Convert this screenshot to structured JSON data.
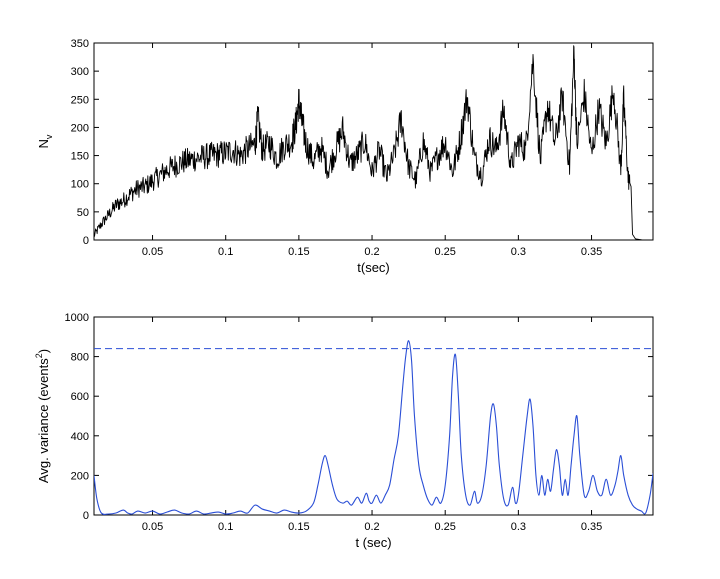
{
  "chart_data": [
    {
      "type": "line",
      "xlabel": "t(sec)",
      "ylabel": "N",
      "ylabel_subscript": "v",
      "xlim": [
        0.01,
        0.392
      ],
      "ylim": [
        0,
        350
      ],
      "xticks": [
        "0.05",
        "0.1",
        "0.15",
        "0.2",
        "0.25",
        "0.3",
        "0.35"
      ],
      "yticks": [
        "0",
        "50",
        "100",
        "150",
        "200",
        "250",
        "300",
        "350"
      ],
      "grid": false,
      "series": [
        {
          "color": "#000000",
          "x": [
            0.01,
            0.015,
            0.02,
            0.025,
            0.03,
            0.035,
            0.04,
            0.045,
            0.05,
            0.055,
            0.06,
            0.065,
            0.07,
            0.075,
            0.08,
            0.085,
            0.09,
            0.095,
            0.1,
            0.105,
            0.11,
            0.115,
            0.12,
            0.122,
            0.125,
            0.13,
            0.135,
            0.14,
            0.145,
            0.148,
            0.15,
            0.152,
            0.155,
            0.16,
            0.165,
            0.17,
            0.175,
            0.18,
            0.185,
            0.19,
            0.195,
            0.2,
            0.205,
            0.21,
            0.215,
            0.22,
            0.225,
            0.23,
            0.235,
            0.24,
            0.245,
            0.25,
            0.255,
            0.26,
            0.265,
            0.27,
            0.275,
            0.28,
            0.285,
            0.29,
            0.295,
            0.3,
            0.305,
            0.31,
            0.315,
            0.32,
            0.325,
            0.33,
            0.335,
            0.338,
            0.34,
            0.345,
            0.35,
            0.355,
            0.36,
            0.365,
            0.37,
            0.372,
            0.375,
            0.377,
            0.378,
            0.38,
            0.385,
            0.39
          ],
          "y": [
            8,
            28,
            45,
            62,
            70,
            82,
            92,
            95,
            105,
            115,
            125,
            132,
            138,
            142,
            145,
            148,
            150,
            152,
            155,
            160,
            150,
            162,
            170,
            215,
            160,
            172,
            145,
            168,
            175,
            205,
            248,
            210,
            170,
            140,
            165,
            125,
            160,
            195,
            135,
            150,
            175,
            120,
            160,
            110,
            150,
            215,
            130,
            105,
            175,
            120,
            150,
            175,
            120,
            175,
            255,
            145,
            115,
            180,
            160,
            230,
            130,
            175,
            160,
            320,
            140,
            240,
            170,
            255,
            130,
            335,
            170,
            260,
            150,
            235,
            170,
            270,
            125,
            250,
            110,
            95,
            10,
            2,
            0,
            0
          ]
        }
      ]
    },
    {
      "type": "line",
      "xlabel": "t (sec)",
      "ylabel": "Avg. variance (events",
      "ylabel_superscript": "2",
      "ylabel_suffix": ")",
      "xlim": [
        0.01,
        0.392
      ],
      "ylim": [
        0,
        1000
      ],
      "xticks": [
        "0.05",
        "0.1",
        "0.15",
        "0.2",
        "0.25",
        "0.3",
        "0.35"
      ],
      "yticks": [
        "0",
        "200",
        "400",
        "600",
        "800",
        "1000"
      ],
      "grid": false,
      "threshold": 840,
      "series": [
        {
          "color": "#2b4fd6",
          "x": [
            0.01,
            0.012,
            0.015,
            0.02,
            0.025,
            0.03,
            0.033,
            0.036,
            0.04,
            0.045,
            0.05,
            0.055,
            0.06,
            0.065,
            0.07,
            0.075,
            0.08,
            0.085,
            0.09,
            0.095,
            0.1,
            0.105,
            0.11,
            0.115,
            0.12,
            0.125,
            0.13,
            0.135,
            0.14,
            0.145,
            0.15,
            0.155,
            0.16,
            0.163,
            0.166,
            0.168,
            0.17,
            0.173,
            0.176,
            0.18,
            0.183,
            0.186,
            0.19,
            0.193,
            0.196,
            0.198,
            0.2,
            0.203,
            0.206,
            0.209,
            0.212,
            0.215,
            0.218,
            0.221,
            0.223,
            0.225,
            0.227,
            0.229,
            0.232,
            0.235,
            0.238,
            0.241,
            0.244,
            0.247,
            0.25,
            0.253,
            0.255,
            0.257,
            0.259,
            0.261,
            0.264,
            0.267,
            0.27,
            0.272,
            0.275,
            0.278,
            0.281,
            0.283,
            0.285,
            0.287,
            0.29,
            0.293,
            0.296,
            0.298,
            0.3,
            0.303,
            0.306,
            0.308,
            0.31,
            0.312,
            0.314,
            0.316,
            0.318,
            0.32,
            0.322,
            0.324,
            0.326,
            0.328,
            0.33,
            0.332,
            0.334,
            0.336,
            0.338,
            0.34,
            0.342,
            0.345,
            0.348,
            0.351,
            0.354,
            0.357,
            0.36,
            0.363,
            0.366,
            0.368,
            0.37,
            0.372,
            0.375,
            0.378,
            0.381,
            0.384,
            0.387,
            0.39,
            0.392
          ],
          "y": [
            200,
            80,
            10,
            5,
            10,
            25,
            10,
            5,
            20,
            10,
            20,
            5,
            15,
            25,
            10,
            5,
            20,
            5,
            10,
            15,
            5,
            10,
            20,
            10,
            50,
            30,
            20,
            10,
            25,
            15,
            10,
            20,
            60,
            150,
            260,
            300,
            250,
            150,
            80,
            60,
            70,
            50,
            90,
            60,
            110,
            70,
            60,
            100,
            60,
            100,
            150,
            280,
            400,
            650,
            800,
            880,
            780,
            500,
            250,
            150,
            80,
            50,
            90,
            60,
            150,
            400,
            700,
            810,
            600,
            300,
            100,
            50,
            120,
            60,
            100,
            250,
            500,
            560,
            450,
            250,
            80,
            50,
            140,
            60,
            100,
            300,
            500,
            585,
            450,
            200,
            100,
            200,
            100,
            180,
            120,
            230,
            330,
            250,
            100,
            180,
            100,
            250,
            400,
            500,
            300,
            100,
            120,
            200,
            120,
            100,
            180,
            100,
            150,
            220,
            300,
            200,
            100,
            50,
            30,
            20,
            10,
            100,
            210
          ]
        }
      ]
    }
  ]
}
